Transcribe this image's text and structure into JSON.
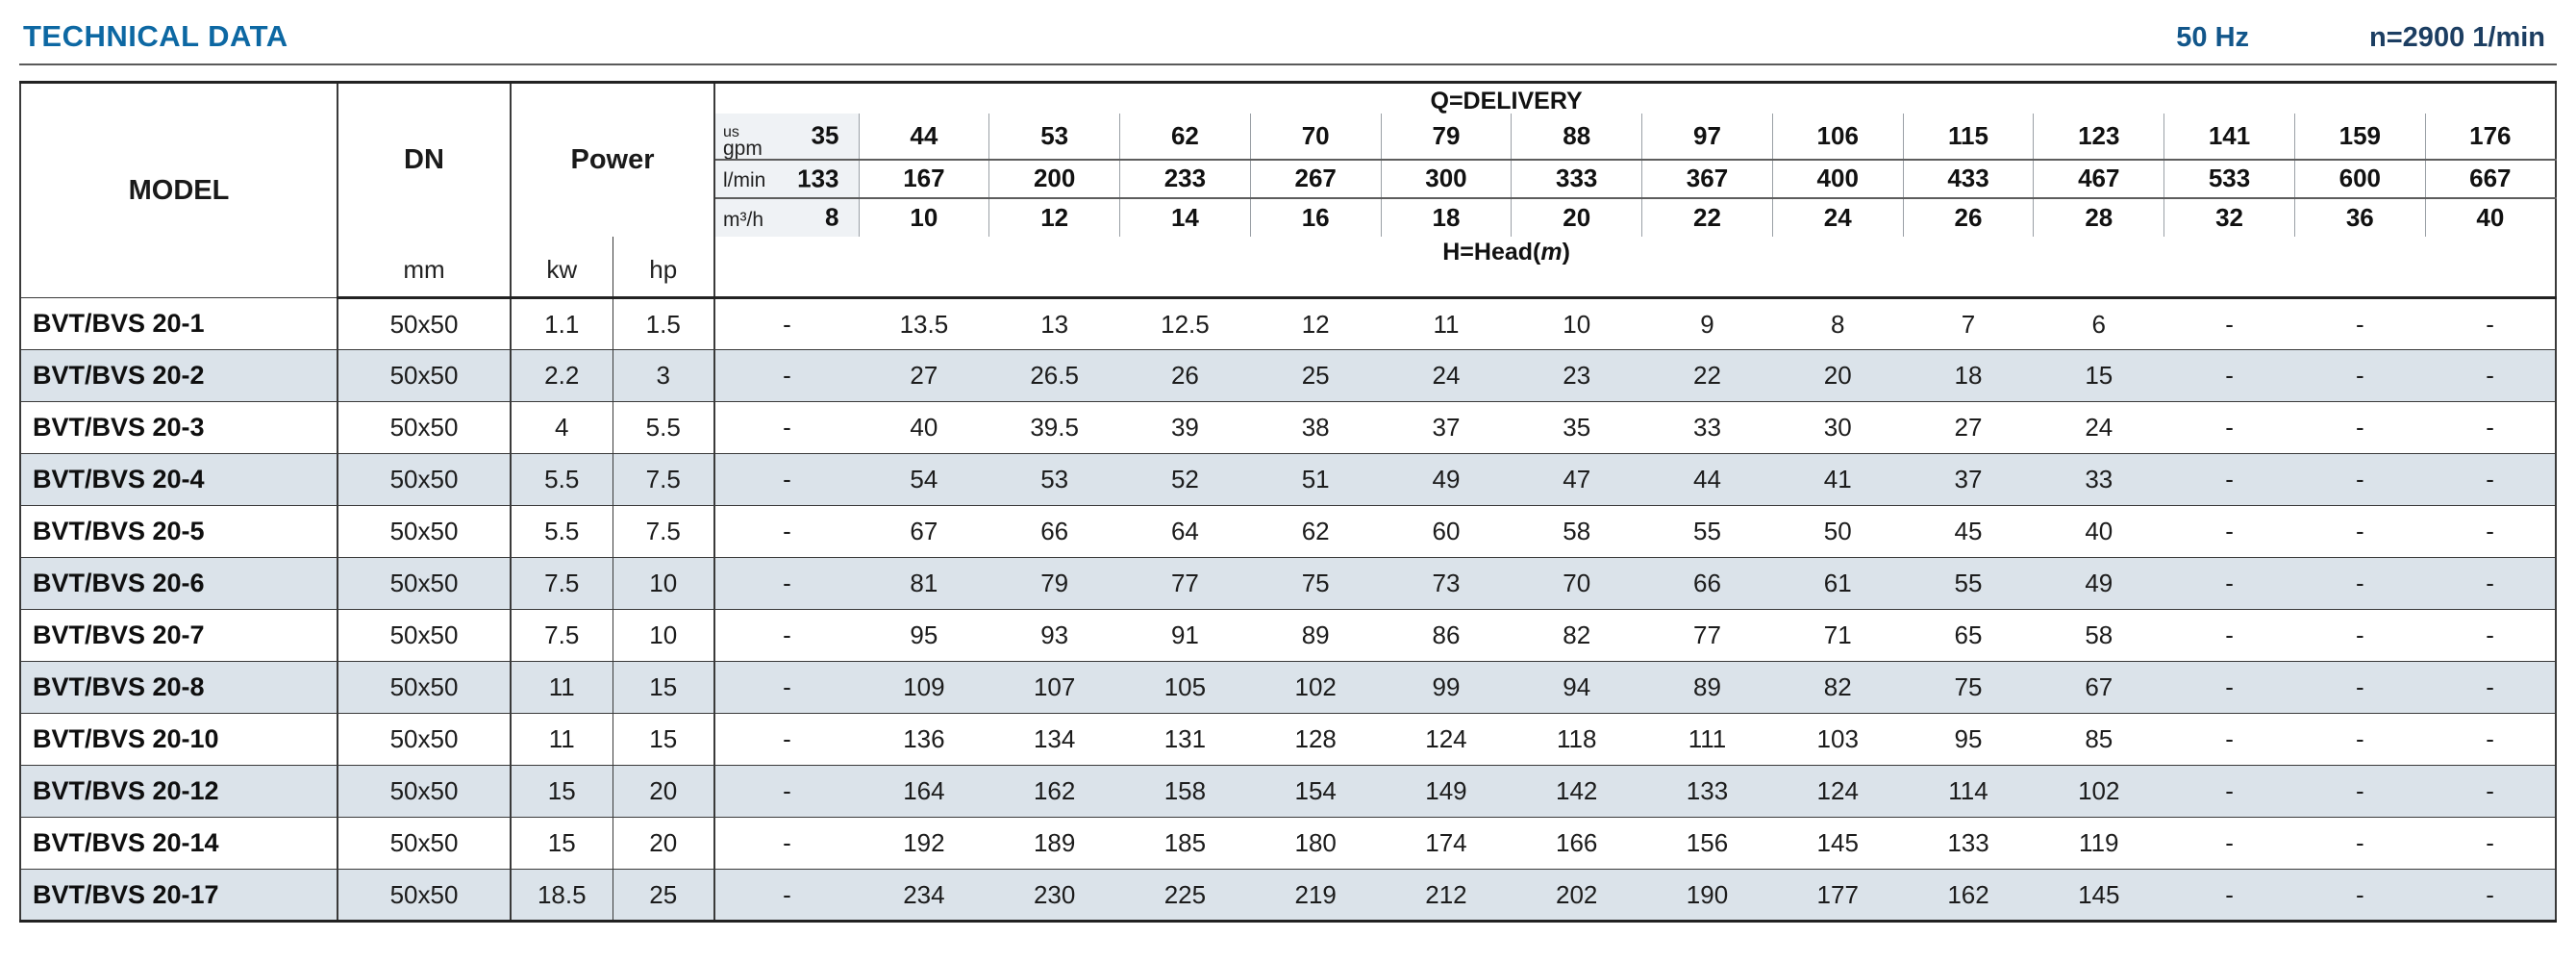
{
  "page": {
    "title": "TECHNICAL DATA",
    "frequency": "50 Hz",
    "speed": "n=2900 1/min"
  },
  "colors": {
    "title": "#0d68a3",
    "frequency": "#12568a",
    "speed": "#1c3e62",
    "row_shade": "#dbe3ea"
  },
  "table": {
    "headers": {
      "model": "MODEL",
      "dn": "DN",
      "dn_unit": "mm",
      "power": "Power",
      "power_units": [
        "kw",
        "hp"
      ],
      "delivery_label": "Q=DELIVERY",
      "head_prefix": "H=Head(",
      "head_m": "m",
      "head_suffix": ")",
      "unit_rows": [
        {
          "label_top": "us",
          "label": "gpm",
          "values": [
            "35",
            "44",
            "53",
            "62",
            "70",
            "79",
            "88",
            "97",
            "106",
            "115",
            "123",
            "141",
            "159",
            "176"
          ]
        },
        {
          "label": "l/min",
          "values": [
            "133",
            "167",
            "200",
            "233",
            "267",
            "300",
            "333",
            "367",
            "400",
            "433",
            "467",
            "533",
            "600",
            "667"
          ]
        },
        {
          "label": "m³/h",
          "values": [
            "8",
            "10",
            "12",
            "14",
            "16",
            "18",
            "20",
            "22",
            "24",
            "26",
            "28",
            "32",
            "36",
            "40"
          ]
        }
      ]
    },
    "rows": [
      {
        "model": "BVT/BVS 20-1",
        "dn": "50x50",
        "kw": "1.1",
        "hp": "1.5",
        "values": [
          "-",
          "13.5",
          "13",
          "12.5",
          "12",
          "11",
          "10",
          "9",
          "8",
          "7",
          "6",
          "-",
          "-",
          "-"
        ]
      },
      {
        "model": "BVT/BVS 20-2",
        "dn": "50x50",
        "kw": "2.2",
        "hp": "3",
        "values": [
          "-",
          "27",
          "26.5",
          "26",
          "25",
          "24",
          "23",
          "22",
          "20",
          "18",
          "15",
          "-",
          "-",
          "-"
        ]
      },
      {
        "model": "BVT/BVS 20-3",
        "dn": "50x50",
        "kw": "4",
        "hp": "5.5",
        "values": [
          "-",
          "40",
          "39.5",
          "39",
          "38",
          "37",
          "35",
          "33",
          "30",
          "27",
          "24",
          "-",
          "-",
          "-"
        ]
      },
      {
        "model": "BVT/BVS 20-4",
        "dn": "50x50",
        "kw": "5.5",
        "hp": "7.5",
        "values": [
          "-",
          "54",
          "53",
          "52",
          "51",
          "49",
          "47",
          "44",
          "41",
          "37",
          "33",
          "-",
          "-",
          "-"
        ]
      },
      {
        "model": "BVT/BVS 20-5",
        "dn": "50x50",
        "kw": "5.5",
        "hp": "7.5",
        "values": [
          "-",
          "67",
          "66",
          "64",
          "62",
          "60",
          "58",
          "55",
          "50",
          "45",
          "40",
          "-",
          "-",
          "-"
        ]
      },
      {
        "model": "BVT/BVS 20-6",
        "dn": "50x50",
        "kw": "7.5",
        "hp": "10",
        "values": [
          "-",
          "81",
          "79",
          "77",
          "75",
          "73",
          "70",
          "66",
          "61",
          "55",
          "49",
          "-",
          "-",
          "-"
        ]
      },
      {
        "model": "BVT/BVS 20-7",
        "dn": "50x50",
        "kw": "7.5",
        "hp": "10",
        "values": [
          "-",
          "95",
          "93",
          "91",
          "89",
          "86",
          "82",
          "77",
          "71",
          "65",
          "58",
          "-",
          "-",
          "-"
        ]
      },
      {
        "model": "BVT/BVS 20-8",
        "dn": "50x50",
        "kw": "11",
        "hp": "15",
        "values": [
          "-",
          "109",
          "107",
          "105",
          "102",
          "99",
          "94",
          "89",
          "82",
          "75",
          "67",
          "-",
          "-",
          "-"
        ]
      },
      {
        "model": "BVT/BVS 20-10",
        "dn": "50x50",
        "kw": "11",
        "hp": "15",
        "values": [
          "-",
          "136",
          "134",
          "131",
          "128",
          "124",
          "118",
          "111",
          "103",
          "95",
          "85",
          "-",
          "-",
          "-"
        ]
      },
      {
        "model": "BVT/BVS 20-12",
        "dn": "50x50",
        "kw": "15",
        "hp": "20",
        "values": [
          "-",
          "164",
          "162",
          "158",
          "154",
          "149",
          "142",
          "133",
          "124",
          "114",
          "102",
          "-",
          "-",
          "-"
        ]
      },
      {
        "model": "BVT/BVS 20-14",
        "dn": "50x50",
        "kw": "15",
        "hp": "20",
        "values": [
          "-",
          "192",
          "189",
          "185",
          "180",
          "174",
          "166",
          "156",
          "145",
          "133",
          "119",
          "-",
          "-",
          "-"
        ]
      },
      {
        "model": "BVT/BVS 20-17",
        "dn": "50x50",
        "kw": "18.5",
        "hp": "25",
        "values": [
          "-",
          "234",
          "230",
          "225",
          "219",
          "212",
          "202",
          "190",
          "177",
          "162",
          "145",
          "-",
          "-",
          "-"
        ]
      }
    ]
  }
}
